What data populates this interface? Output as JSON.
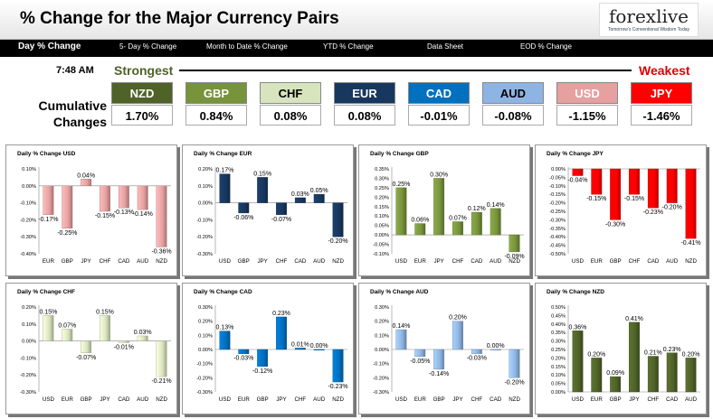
{
  "header": {
    "title": "% Change for the Major Currency Pairs",
    "logo_text": "forexlive",
    "logo_tagline": "Tomorrow's Conventional Wisdom Today"
  },
  "nav": [
    {
      "label": "Day % Change",
      "active": true
    },
    {
      "label": "5- Day % Change",
      "active": false
    },
    {
      "label": "Month to Date % Change",
      "active": false
    },
    {
      "label": "YTD % Change",
      "active": false
    },
    {
      "label": "Data Sheet",
      "active": false
    },
    {
      "label": "EOD % Change",
      "active": false
    }
  ],
  "summary": {
    "time": "7:48 AM",
    "strongest_label": "Strongest",
    "weakest_label": "Weakest",
    "row_label": "Cumulative Changes",
    "currencies": [
      {
        "code": "NZD",
        "value": "1.70%",
        "bg": "#4f6228",
        "fg": "#ffffff"
      },
      {
        "code": "GBP",
        "value": "0.84%",
        "bg": "#77933c",
        "fg": "#ffffff"
      },
      {
        "code": "CHF",
        "value": "0.08%",
        "bg": "#d7e4bd",
        "fg": "#000000"
      },
      {
        "code": "EUR",
        "value": "0.08%",
        "bg": "#17375e",
        "fg": "#ffffff"
      },
      {
        "code": "CAD",
        "value": "-0.01%",
        "bg": "#0070c0",
        "fg": "#ffffff"
      },
      {
        "code": "AUD",
        "value": "-0.08%",
        "bg": "#8eb4e3",
        "fg": "#000000"
      },
      {
        "code": "USD",
        "value": "-1.15%",
        "bg": "#e6a0a0",
        "fg": "#ffffff"
      },
      {
        "code": "JPY",
        "value": "-1.46%",
        "bg": "#ff0000",
        "fg": "#ffffff"
      }
    ]
  },
  "chart_data": [
    {
      "type": "bar",
      "title": "Daily % Change USD",
      "color": "#e6a0a0",
      "categories": [
        "EUR",
        "GBP",
        "JPY",
        "CHF",
        "CAD",
        "AUD",
        "NZD"
      ],
      "values": [
        -0.17,
        -0.25,
        0.04,
        -0.15,
        -0.13,
        -0.14,
        -0.36
      ],
      "labels": [
        "-0.17%",
        "-0.25%",
        "0.04%",
        "-0.15%",
        "-0.13%",
        "-0.14%",
        "-0.36%"
      ],
      "ylim": [
        -0.4,
        0.1
      ],
      "ticks": [
        0.1,
        0,
        -0.1,
        -0.2,
        -0.3,
        -0.4
      ],
      "tick_labels": [
        "0.10%",
        "0.00%",
        "-0.10%",
        "-0.20%",
        "-0.30%",
        "-0.40%"
      ]
    },
    {
      "type": "bar",
      "title": "Daily % Change EUR",
      "color": "#17375e",
      "categories": [
        "USD",
        "GBP",
        "JPY",
        "CHF",
        "CAD",
        "AUD",
        "NZD"
      ],
      "values": [
        0.17,
        -0.06,
        0.15,
        -0.07,
        0.03,
        0.05,
        -0.2
      ],
      "labels": [
        "0.17%",
        "-0.06%",
        "0.15%",
        "-0.07%",
        "0.03%",
        "0.05%",
        "-0.20%"
      ],
      "ylim": [
        -0.3,
        0.2
      ],
      "ticks": [
        0.2,
        0.1,
        0,
        -0.1,
        -0.2,
        -0.3
      ],
      "tick_labels": [
        "0.20%",
        "0.10%",
        "0.00%",
        "-0.10%",
        "-0.20%",
        "-0.30%"
      ]
    },
    {
      "type": "bar",
      "title": "Daily % Change GBP",
      "color": "#77933c",
      "categories": [
        "USD",
        "EUR",
        "JPY",
        "CHF",
        "CAD",
        "AUD",
        "NZD"
      ],
      "values": [
        0.25,
        0.06,
        0.3,
        0.07,
        0.12,
        0.14,
        -0.09
      ],
      "labels": [
        "0.25%",
        "0.06%",
        "0.30%",
        "0.07%",
        "0.12%",
        "0.14%",
        "-0.09%"
      ],
      "ylim": [
        -0.1,
        0.35
      ],
      "ticks": [
        0.35,
        0.3,
        0.25,
        0.2,
        0.15,
        0.1,
        0.05,
        0,
        -0.05,
        -0.1
      ],
      "tick_labels": [
        "0.35%",
        "0.30%",
        "0.25%",
        "0.20%",
        "0.15%",
        "0.10%",
        "0.05%",
        "0.00%",
        "-0.05%",
        "-0.10%"
      ]
    },
    {
      "type": "bar",
      "title": "Daily % Change JPY",
      "color": "#ff0000",
      "categories": [
        "USD",
        "EUR",
        "GBP",
        "CHF",
        "CAD",
        "AUD",
        "NZD"
      ],
      "values": [
        -0.04,
        -0.15,
        -0.3,
        -0.15,
        -0.23,
        -0.2,
        -0.41
      ],
      "labels": [
        "-0.04%",
        "-0.15%",
        "-0.30%",
        "-0.15%",
        "-0.23%",
        "-0.20%",
        "-0.41%"
      ],
      "ylim": [
        -0.5,
        0
      ],
      "ticks": [
        0,
        -0.05,
        -0.1,
        -0.15,
        -0.2,
        -0.25,
        -0.3,
        -0.35,
        -0.4,
        -0.45,
        -0.5
      ],
      "tick_labels": [
        "0.00%",
        "-0.05%",
        "-0.10%",
        "-0.15%",
        "-0.20%",
        "-0.25%",
        "-0.30%",
        "-0.35%",
        "-0.40%",
        "-0.45%",
        "-0.50%"
      ]
    },
    {
      "type": "bar",
      "title": "Daily % Change CHF",
      "color": "#d7e4bd",
      "categories": [
        "USD",
        "EUR",
        "GBP",
        "JPY",
        "CAD",
        "AUD",
        "NZD"
      ],
      "values": [
        0.15,
        0.07,
        -0.07,
        0.15,
        -0.01,
        0.03,
        -0.21
      ],
      "labels": [
        "0.15%",
        "0.07%",
        "-0.07%",
        "0.15%",
        "-0.01%",
        "0.03%",
        "-0.21%"
      ],
      "ylim": [
        -0.3,
        0.2
      ],
      "ticks": [
        0.2,
        0.1,
        0,
        -0.1,
        -0.2,
        -0.3
      ],
      "tick_labels": [
        "0.20%",
        "0.10%",
        "0.00%",
        "-0.10%",
        "-0.20%",
        "-0.30%"
      ]
    },
    {
      "type": "bar",
      "title": "Daily % Change CAD",
      "color": "#0070c0",
      "categories": [
        "USD",
        "EUR",
        "GBP",
        "JPY",
        "CHF",
        "AUD",
        "NZD"
      ],
      "values": [
        0.13,
        -0.03,
        -0.12,
        0.23,
        0.01,
        0,
        -0.23
      ],
      "labels": [
        "0.13%",
        "-0.03%",
        "-0.12%",
        "0.23%",
        "0.01%",
        "0.00%",
        "-0.23%"
      ],
      "ylim": [
        -0.3,
        0.3
      ],
      "ticks": [
        0.3,
        0.2,
        0.1,
        0,
        -0.1,
        -0.2,
        -0.3
      ],
      "tick_labels": [
        "0.30%",
        "0.20%",
        "0.10%",
        "0.00%",
        "-0.10%",
        "-0.20%",
        "-0.30%"
      ]
    },
    {
      "type": "bar",
      "title": "Daily % Change AUD",
      "color": "#8eb4e3",
      "categories": [
        "USD",
        "EUR",
        "GBP",
        "JPY",
        "CHF",
        "CAD",
        "NZD"
      ],
      "values": [
        0.14,
        -0.05,
        -0.14,
        0.2,
        -0.03,
        0,
        -0.2
      ],
      "labels": [
        "0.14%",
        "-0.05%",
        "-0.14%",
        "0.20%",
        "-0.03%",
        "0.00%",
        "-0.20%"
      ],
      "ylim": [
        -0.3,
        0.3
      ],
      "ticks": [
        0.3,
        0.2,
        0.1,
        0,
        -0.1,
        -0.2,
        -0.3
      ],
      "tick_labels": [
        "0.30%",
        "0.20%",
        "0.10%",
        "0.00%",
        "-0.10%",
        "-0.20%",
        "-0.30%"
      ]
    },
    {
      "type": "bar",
      "title": "Daily % Change NZD",
      "color": "#4f6228",
      "categories": [
        "USD",
        "EUR",
        "GBP",
        "JPY",
        "CHF",
        "CAD",
        "AUD"
      ],
      "values": [
        0.36,
        0.2,
        0.09,
        0.41,
        0.21,
        0.23,
        0.2
      ],
      "labels": [
        "0.36%",
        "0.20%",
        "0.09%",
        "0.41%",
        "0.21%",
        "0.23%",
        "0.20%"
      ],
      "ylim": [
        0,
        0.5
      ],
      "ticks": [
        0.5,
        0.45,
        0.4,
        0.35,
        0.3,
        0.25,
        0.2,
        0.15,
        0.1,
        0.05,
        0
      ],
      "tick_labels": [
        "0.50%",
        "0.45%",
        "0.40%",
        "0.35%",
        "0.30%",
        "0.25%",
        "0.20%",
        "0.15%",
        "0.10%",
        "0.05%",
        "0.00%"
      ]
    }
  ]
}
